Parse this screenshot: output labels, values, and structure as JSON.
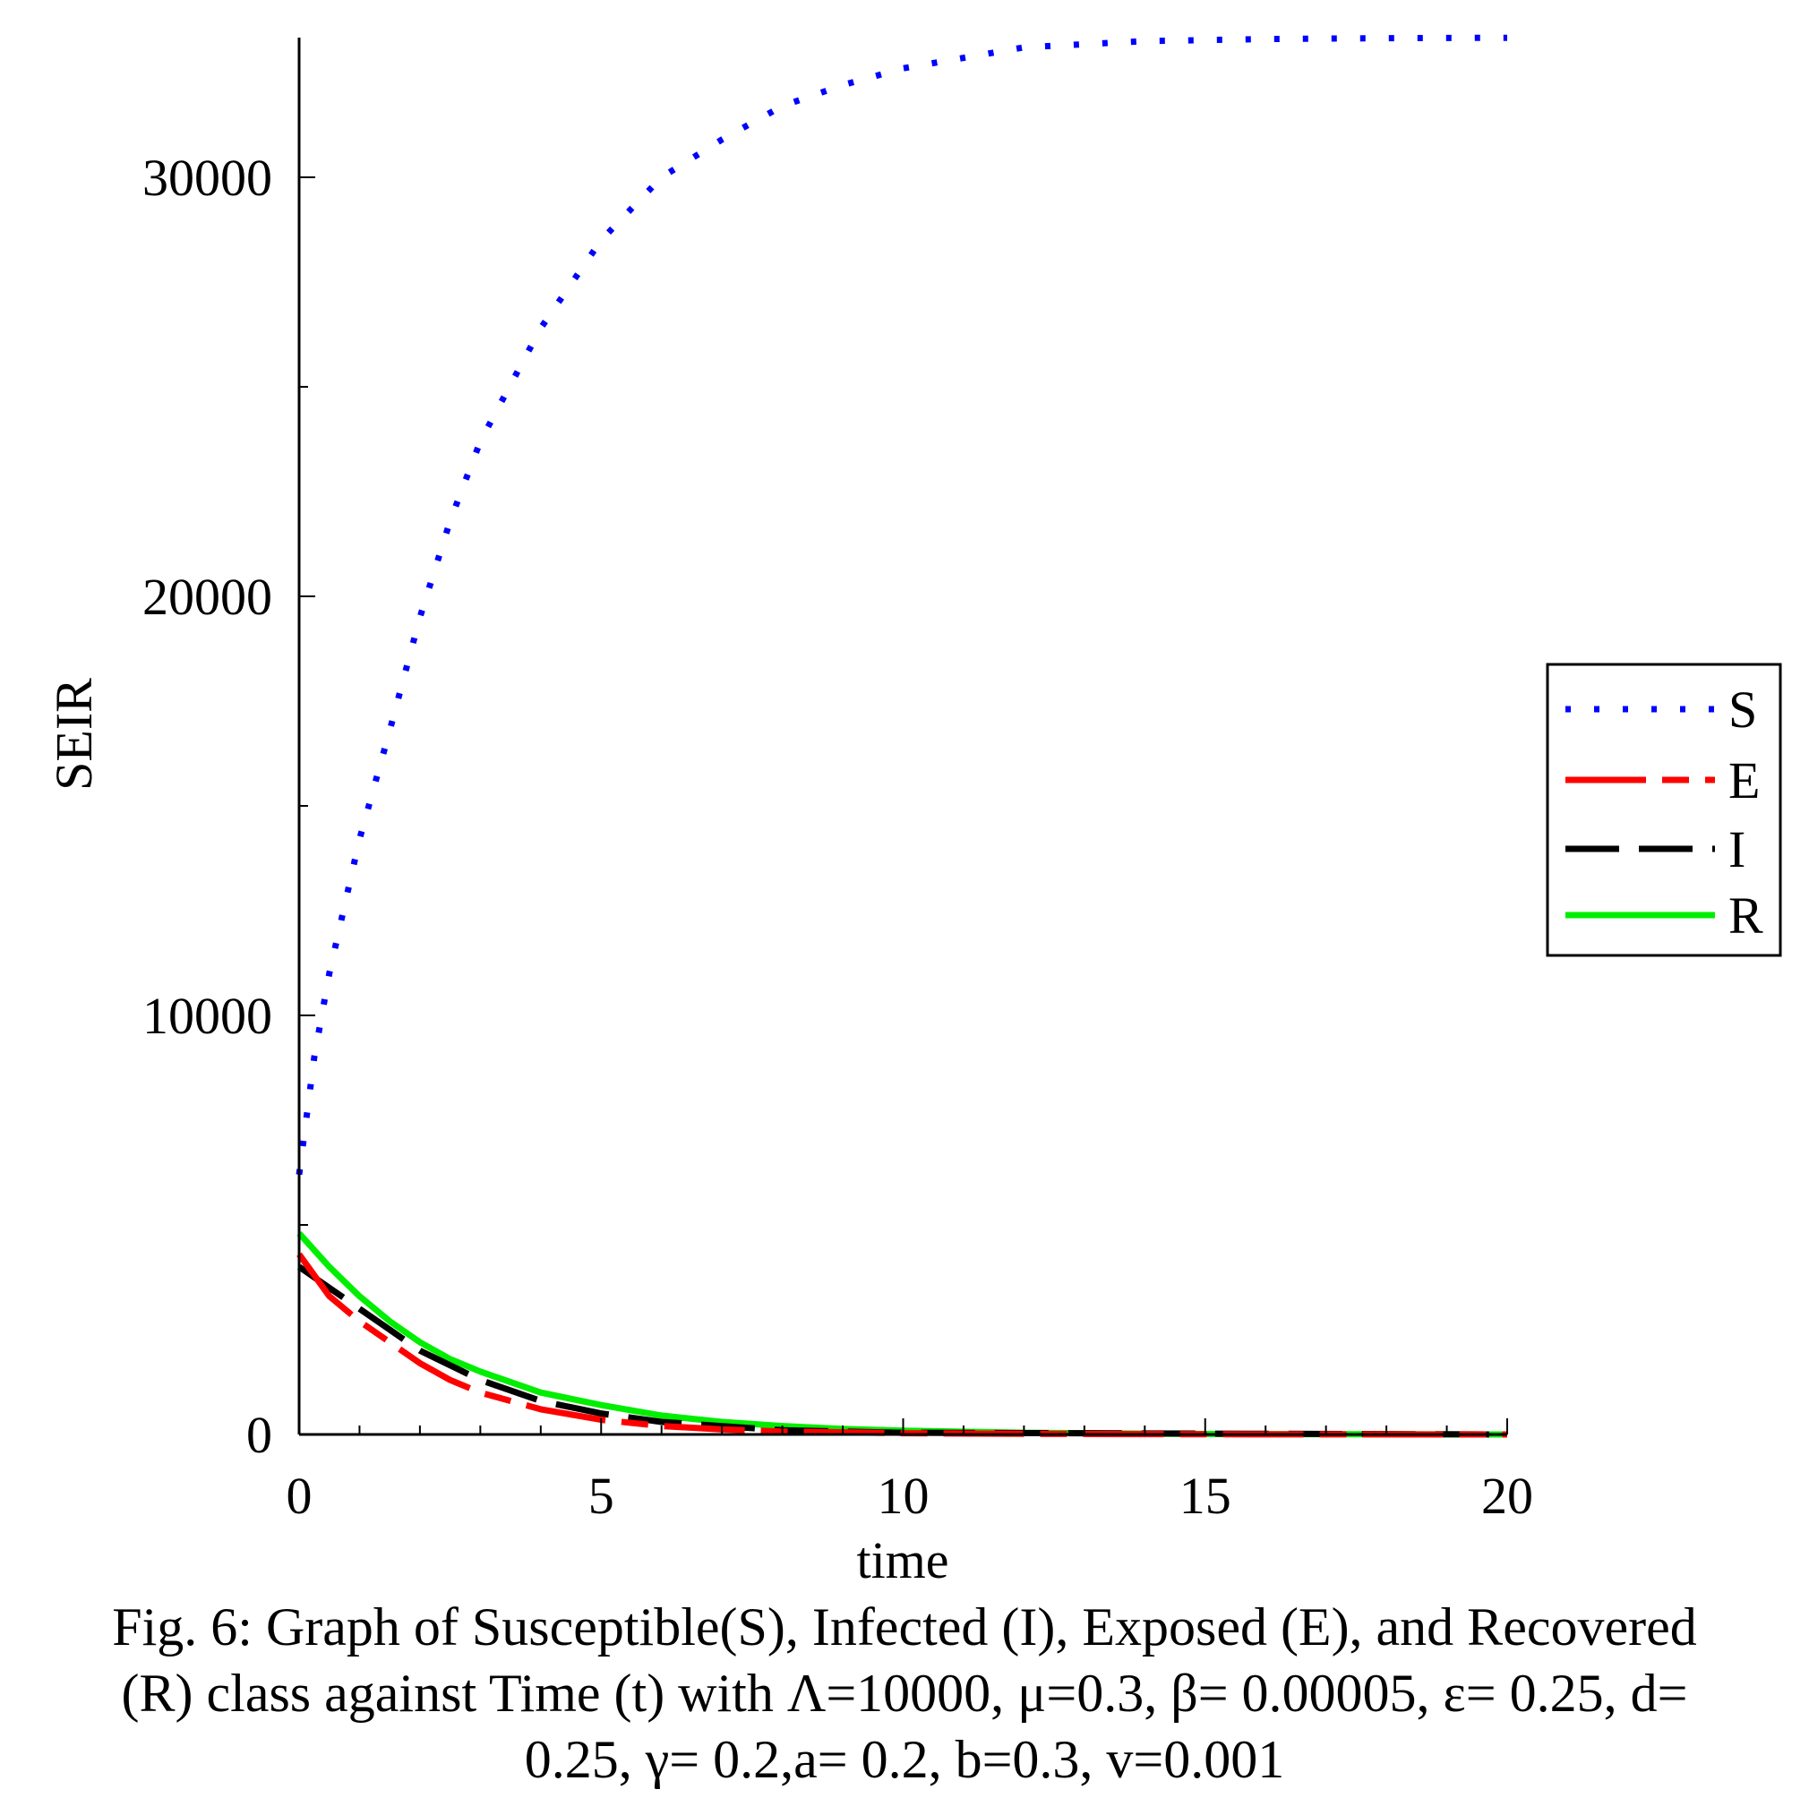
{
  "chart_data": {
    "type": "line",
    "xlabel": "time",
    "ylabel": "SEIR",
    "xlim": [
      0,
      20
    ],
    "ylim": [
      0,
      33500
    ],
    "x_ticks": [
      0,
      5,
      10,
      15,
      20
    ],
    "y_ticks": [
      0,
      10000,
      20000,
      30000
    ],
    "grid": false,
    "legend_position": "right",
    "series": [
      {
        "name": "S",
        "color": "#0000ff",
        "style": "dotted",
        "x": [
          0,
          0.25,
          0.5,
          1,
          1.5,
          2,
          2.5,
          3,
          4,
          5,
          6,
          7,
          8,
          9,
          10,
          12,
          14,
          16,
          18,
          20
        ],
        "y": [
          6200,
          9000,
          11000,
          14200,
          16800,
          19500,
          21800,
          23700,
          26400,
          28500,
          30000,
          30900,
          31700,
          32200,
          32600,
          33100,
          33250,
          33300,
          33320,
          33330
        ]
      },
      {
        "name": "E",
        "color": "#ff0000",
        "style": "dash-dot",
        "x": [
          0,
          0.5,
          1,
          1.5,
          2,
          2.5,
          3,
          4,
          5,
          6,
          7,
          8,
          10,
          12,
          15,
          20
        ],
        "y": [
          4300,
          3300,
          2700,
          2200,
          1700,
          1300,
          1000,
          600,
          350,
          200,
          120,
          70,
          30,
          15,
          5,
          0
        ]
      },
      {
        "name": "I",
        "color": "#000000",
        "style": "dashed",
        "x": [
          0,
          0.5,
          1,
          1.5,
          2,
          3,
          4,
          5,
          6,
          8,
          10,
          20
        ],
        "y": [
          4000,
          3500,
          3000,
          2500,
          2000,
          1300,
          800,
          500,
          300,
          100,
          40,
          0
        ]
      },
      {
        "name": "R",
        "color": "#00ee00",
        "style": "solid",
        "x": [
          0,
          0.5,
          1,
          1.5,
          2,
          2.5,
          3,
          4,
          5,
          6,
          7,
          8,
          9,
          10,
          12,
          15,
          20
        ],
        "y": [
          4800,
          4000,
          3300,
          2700,
          2200,
          1800,
          1500,
          1000,
          700,
          450,
          300,
          200,
          130,
          90,
          40,
          10,
          0
        ]
      }
    ]
  },
  "caption": {
    "line1": "Fig. 6: Graph of Susceptible(S), Infected (I), Exposed (E), and Recovered",
    "line2": "(R) class against Time (t) with Λ=10000, μ=0.3, β= 0.00005, ε= 0.25, d=",
    "line3": "0.25, γ= 0.2,a= 0.2, b=0.3, v=0.001"
  }
}
